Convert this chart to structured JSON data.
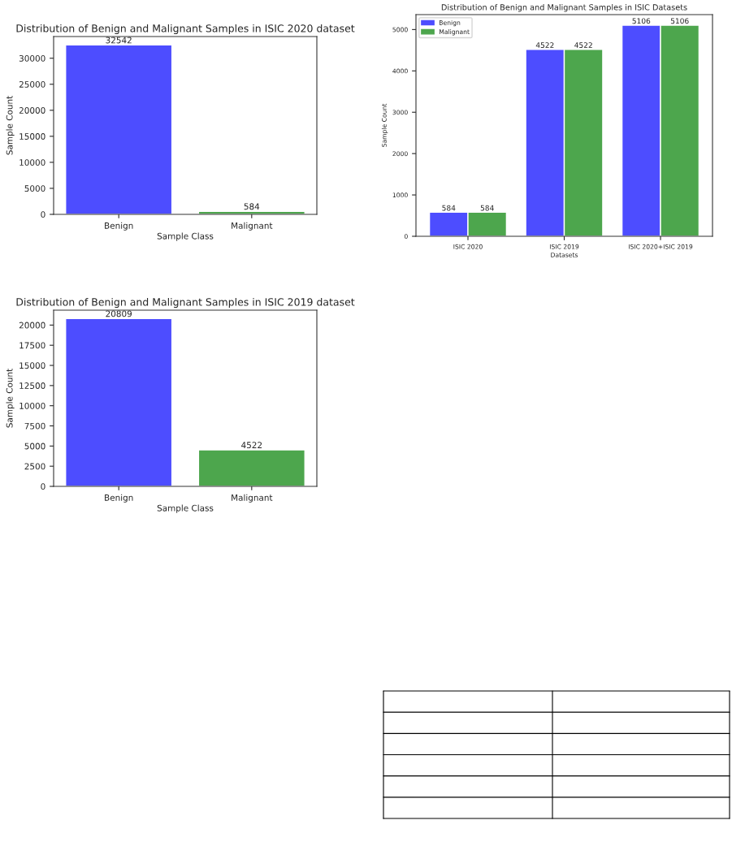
{
  "chart_data": [
    {
      "type": "bar",
      "title": "Distribution of Benign and Malignant Samples in ISIC 2020 dataset",
      "xlabel": "Sample Class",
      "ylabel": "Sample Count",
      "categories": [
        "Benign",
        "Malignant"
      ],
      "values": [
        32542,
        584
      ],
      "colors": [
        "#4d4dff",
        "#4da64d"
      ],
      "ylim": [
        0,
        34169
      ],
      "yticks": [
        0,
        5000,
        10000,
        15000,
        20000,
        25000,
        30000
      ],
      "data_labels": true,
      "grid": false
    },
    {
      "type": "bar",
      "title": "Distribution of Benign and Malignant Samples in ISIC Datasets",
      "xlabel": "Datasets",
      "ylabel": "Sample Count",
      "categories": [
        "ISIC 2020",
        "ISIC 2019",
        "ISIC 2020+ISIC 2019"
      ],
      "series": [
        {
          "name": "Benign",
          "color": "#4d4dff",
          "values": [
            584,
            4522,
            5106
          ]
        },
        {
          "name": "Malignant",
          "color": "#4da64d",
          "values": [
            584,
            4522,
            5106
          ]
        }
      ],
      "ylim": [
        0,
        5361
      ],
      "yticks": [
        0,
        1000,
        2000,
        3000,
        4000,
        5000
      ],
      "data_labels": true,
      "legend": "top left",
      "grid": false
    },
    {
      "type": "bar",
      "title": "Distribution of Benign and Malignant Samples in ISIC 2019 dataset",
      "xlabel": "Sample Class",
      "ylabel": "Sample Count",
      "categories": [
        "Benign",
        "Malignant"
      ],
      "values": [
        20809,
        4522
      ],
      "colors": [
        "#4d4dff",
        "#4da64d"
      ],
      "ylim": [
        0,
        21850
      ],
      "yticks": [
        0,
        2500,
        5000,
        7500,
        10000,
        12500,
        15000,
        17500,
        20000
      ],
      "data_labels": true,
      "grid": false
    }
  ]
}
